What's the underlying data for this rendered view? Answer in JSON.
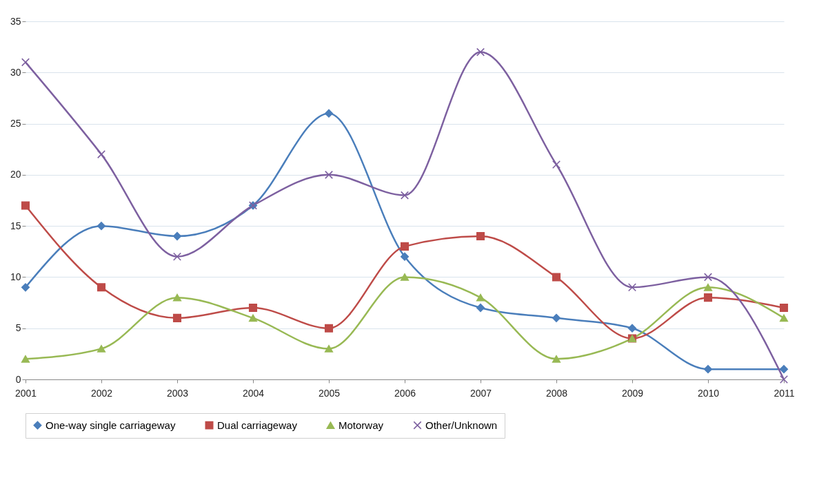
{
  "chart_data": {
    "type": "line",
    "categories": [
      "2001",
      "2002",
      "2003",
      "2004",
      "2005",
      "2006",
      "2007",
      "2008",
      "2009",
      "2010",
      "2011"
    ],
    "series": [
      {
        "name": "One-way single carriageway",
        "color": "#4a7ebb",
        "marker": "diamond",
        "values": [
          9,
          15,
          14,
          17,
          26,
          12,
          7,
          6,
          5,
          1,
          1
        ]
      },
      {
        "name": "Dual carriageway",
        "color": "#be4b48",
        "marker": "square",
        "values": [
          17,
          9,
          6,
          7,
          5,
          13,
          14,
          10,
          4,
          8,
          7
        ]
      },
      {
        "name": "Motorway",
        "color": "#98b954",
        "marker": "triangle",
        "values": [
          2,
          3,
          8,
          6,
          3,
          10,
          8,
          2,
          4,
          9,
          6
        ]
      },
      {
        "name": "Other/Unknown",
        "color": "#7d60a0",
        "marker": "cross",
        "values": [
          31,
          22,
          12,
          17,
          20,
          18,
          32,
          21,
          9,
          10,
          0
        ]
      }
    ],
    "ylim": [
      0,
      35
    ],
    "yticks": [
      0,
      5,
      10,
      15,
      20,
      25,
      30,
      35
    ],
    "grid": "y",
    "legend": "bottom",
    "line_style": "solid"
  }
}
